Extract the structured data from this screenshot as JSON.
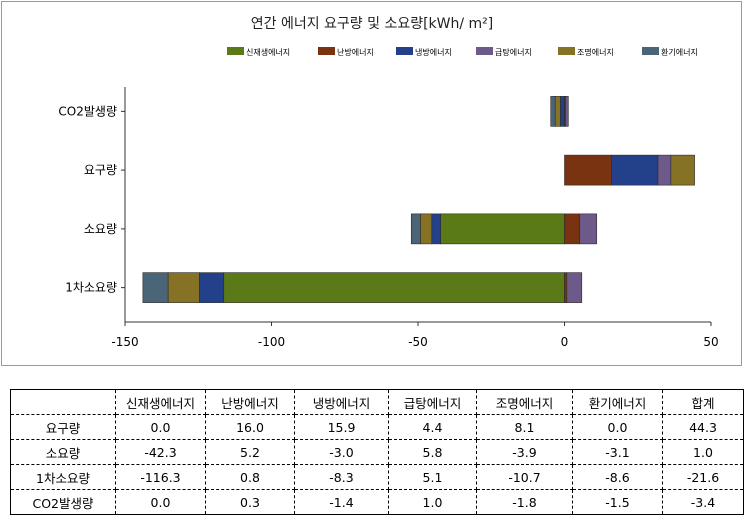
{
  "chart_data": {
    "type": "bar",
    "orientation": "horizontal",
    "stacked": true,
    "title": "연간 에너지 요구량 및 소요량[kWh/ m²]",
    "categories": [
      "CO2발생량",
      "요구량",
      "소요량",
      "1차소요량"
    ],
    "series": [
      {
        "name": "신재생에너지",
        "color": "#5a7a18",
        "values": [
          0.0,
          0.0,
          -42.3,
          -116.3
        ]
      },
      {
        "name": "난방에너지",
        "color": "#7a3310",
        "values": [
          0.3,
          16.0,
          5.2,
          0.8
        ]
      },
      {
        "name": "냉방에너지",
        "color": "#23408a",
        "values": [
          -1.4,
          15.9,
          -3.0,
          -8.3
        ]
      },
      {
        "name": "급탕에너지",
        "color": "#6e5a8a",
        "values": [
          1.0,
          4.4,
          5.8,
          5.1
        ]
      },
      {
        "name": "조명에너지",
        "color": "#857224",
        "values": [
          -1.8,
          8.1,
          -3.9,
          -10.7
        ]
      },
      {
        "name": "환기에너지",
        "color": "#4a6478",
        "values": [
          -1.5,
          0.0,
          -3.1,
          -8.6
        ]
      }
    ],
    "xlim": [
      -150,
      50
    ],
    "xticks": [
      -150,
      -100,
      -50,
      0,
      50
    ],
    "legend_position": "top-right",
    "grid": false
  },
  "table": {
    "header": [
      "",
      "신재생에너지",
      "난방에너지",
      "냉방에너지",
      "급탕에너지",
      "조명에너지",
      "환기에너지",
      "합계"
    ],
    "rows": [
      [
        "요구량",
        "0.0",
        "16.0",
        "15.9",
        "4.4",
        "8.1",
        "0.0",
        "44.3"
      ],
      [
        "소요량",
        "-42.3",
        "5.2",
        "-3.0",
        "5.8",
        "-3.9",
        "-3.1",
        "1.0"
      ],
      [
        "1차소요량",
        "-116.3",
        "0.8",
        "-8.3",
        "5.1",
        "-10.7",
        "-8.6",
        "-21.6"
      ],
      [
        "CO2발생량",
        "0.0",
        "0.3",
        "-1.4",
        "1.0",
        "-1.8",
        "-1.5",
        "-3.4"
      ]
    ]
  }
}
